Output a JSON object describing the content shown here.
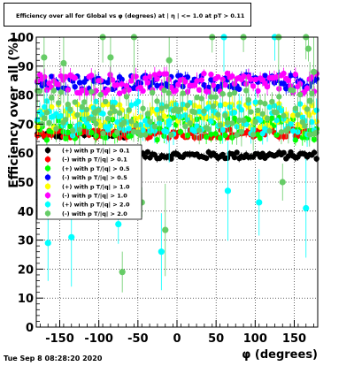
{
  "title": "Efficiency over all for Global vs φ (degrees) at | η | <= 1.0 at pT > 0.11",
  "date_stamp": "Tue Sep  8 08:28:20 2020",
  "chart_data": {
    "type": "scatter",
    "xlabel": "φ (degrees)",
    "ylabel": "Efficiency over all (%)",
    "xlim": [
      -180,
      180
    ],
    "ylim": [
      0,
      100
    ],
    "x_ticks": [
      -150,
      -100,
      -50,
      0,
      50,
      100,
      150
    ],
    "y_ticks": [
      0,
      10,
      20,
      30,
      40,
      50,
      60,
      70,
      80,
      90,
      100
    ],
    "grid": true,
    "legend_position": "left-middle",
    "series": [
      {
        "name": "(+) with p T/|q| > 0.1",
        "color": "#000000",
        "marker": "circle",
        "segments": [
          [
            -180,
            -60,
            66.3,
            1.0
          ],
          [
            -60,
            180,
            59.2,
            1.2
          ]
        ]
      },
      {
        "name": "(-) with p T/|q| > 0.1",
        "color": "#ff0000",
        "marker": "circle",
        "segments": [
          [
            -180,
            180,
            66.8,
            1.6
          ]
        ]
      },
      {
        "name": "(+) with p T/|q| > 0.5",
        "color": "#00ff00",
        "marker": "circle",
        "segments": [
          [
            -180,
            180,
            68.5,
            4.0
          ]
        ]
      },
      {
        "name": "(-) with p T/|q| > 0.5",
        "color": "#0000ff",
        "marker": "circle",
        "segments": [
          [
            -180,
            180,
            84.5,
            2.5
          ]
        ]
      },
      {
        "name": "(+) with p T/|q| > 1.0",
        "color": "#ffff00",
        "marker": "circle",
        "segments": [
          [
            -180,
            180,
            73.0,
            4.5
          ]
        ]
      },
      {
        "name": "(-) with p T/|q| > 1.0",
        "color": "#ff00ff",
        "marker": "circle",
        "segments": [
          [
            -180,
            180,
            84.0,
            3.5
          ]
        ]
      },
      {
        "name": "(+) with p T/|q| > 2.0",
        "color": "#00ffff",
        "marker": "circle",
        "segments": [
          [
            -180,
            180,
            72.0,
            6.0
          ]
        ],
        "outliers": [
          [
            -165,
            29
          ],
          [
            -135,
            31
          ],
          [
            -75,
            35.5
          ],
          [
            -20,
            26
          ],
          [
            -10,
            71
          ],
          [
            60,
            100
          ],
          [
            65,
            47
          ],
          [
            105,
            43
          ],
          [
            165,
            41
          ],
          [
            125,
            100
          ]
        ]
      },
      {
        "name": "(-) with p T/|q| > 2.0",
        "color": "#66cc66",
        "marker": "circle",
        "segments": [
          [
            -180,
            180,
            74.0,
            8.0
          ]
        ],
        "outliers": [
          [
            -170,
            93
          ],
          [
            -145,
            91
          ],
          [
            -125,
            60
          ],
          [
            -105,
            74
          ],
          [
            -95,
            100
          ],
          [
            -85,
            93
          ],
          [
            -70,
            19
          ],
          [
            -55,
            100
          ],
          [
            -45,
            43
          ],
          [
            -15,
            33.5
          ],
          [
            -10,
            92
          ],
          [
            45,
            100
          ],
          [
            85,
            100
          ],
          [
            130,
            100
          ],
          [
            135,
            50
          ],
          [
            165,
            100
          ],
          [
            168,
            96
          ],
          [
            170,
            78
          ],
          [
            175,
            88
          ]
        ]
      }
    ]
  }
}
